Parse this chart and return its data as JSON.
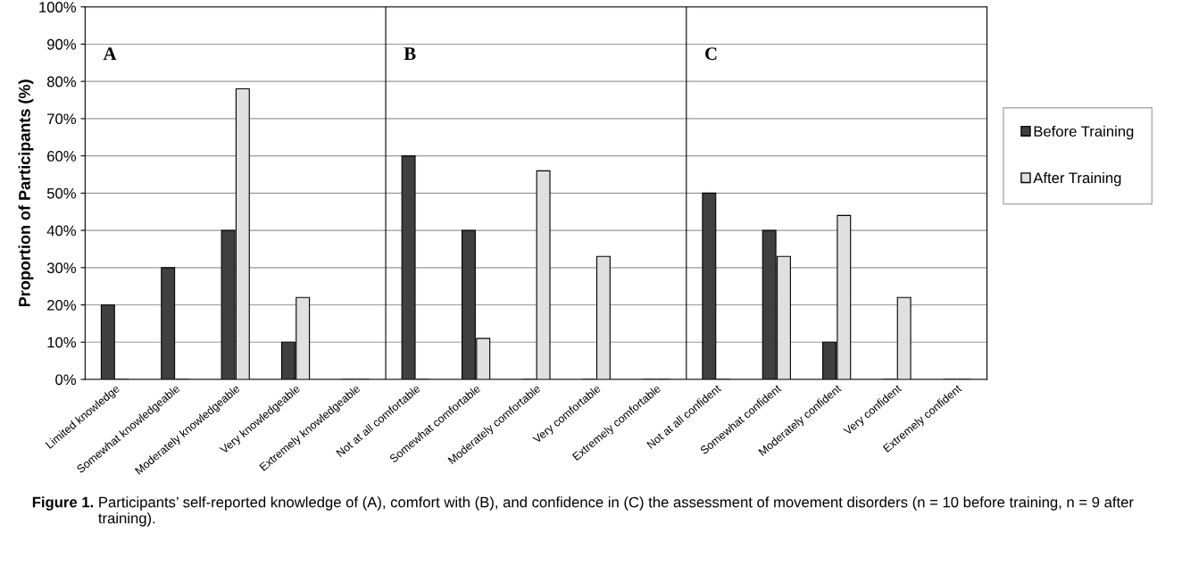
{
  "chart_data": {
    "type": "bar",
    "ylabel": "Proportion of Participants (%)",
    "categories": [
      "Limited knowledge",
      "Somewhat knowledgeable",
      "Moderately knowledgeable",
      "Very knowledgeable",
      "Extremely knowledgeable",
      "Not at all comfortable",
      "Somewhat comfortable",
      "Moderately comfortable",
      "Very comfortable",
      "Extremely comfortable",
      "Not at all confident",
      "Somewhat confident",
      "Moderately confident",
      "Very confident",
      "Extremely confident"
    ],
    "series": [
      {
        "name": "Before Training",
        "color": "#404040",
        "values": [
          20,
          30,
          40,
          10,
          0,
          60,
          40,
          0,
          0,
          0,
          50,
          40,
          10,
          0,
          0
        ]
      },
      {
        "name": "After Training",
        "color": "#e0e0e0",
        "values": [
          0,
          0,
          78,
          22,
          0,
          0,
          11,
          56,
          33,
          0,
          0,
          33,
          44,
          22,
          0
        ]
      }
    ],
    "ylim": [
      0,
      100
    ],
    "yticks": [
      {
        "value": 0,
        "label": "0%"
      },
      {
        "value": 10,
        "label": "10%"
      },
      {
        "value": 20,
        "label": "20%"
      },
      {
        "value": 30,
        "label": "30%"
      },
      {
        "value": 40,
        "label": "40%"
      },
      {
        "value": 50,
        "label": "50%"
      },
      {
        "value": 60,
        "label": "60%"
      },
      {
        "value": 70,
        "label": "70%"
      },
      {
        "value": 80,
        "label": "80%"
      },
      {
        "value": 90,
        "label": "90%"
      },
      {
        "value": 100,
        "label": "100%"
      }
    ],
    "grid": "y",
    "legend": "right",
    "annotations": [
      "A",
      "B",
      "C",
      "Figure 1.",
      "Participants’ self-reported knowledge of (A), comfort with (B), and confidence in (C) the assessment of movement disorders (n = 10 before training, n = 9 after training)."
    ]
  }
}
